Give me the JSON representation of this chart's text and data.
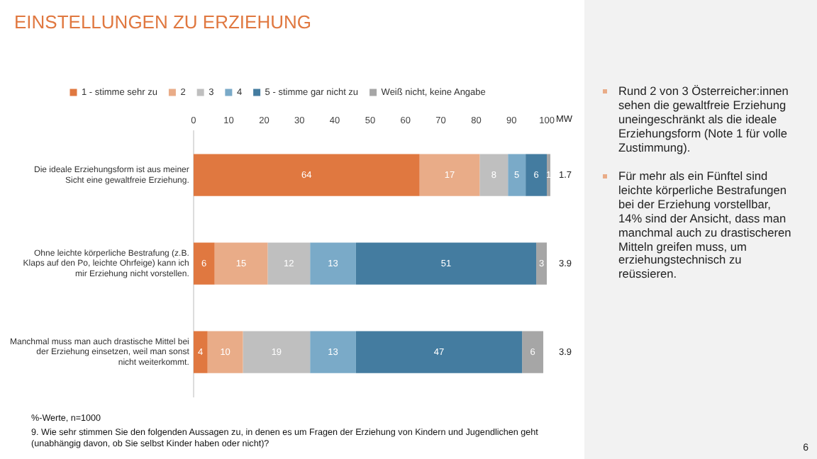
{
  "chart_data": {
    "type": "bar",
    "orientation": "horizontal",
    "stacked": true,
    "title": "EINSTELLUNGEN ZU ERZIEHUNG",
    "categories": [
      "Die ideale Erziehungsform ist aus meiner Sicht eine gewaltfreie Erziehung.",
      "Ohne leichte körperliche Bestrafung (z.B. Klaps auf den Po, leichte Ohrfeige) kann ich mir Erziehung nicht vorstellen.",
      "Manchmal muss man auch drastische Mittel bei der Erziehung einsetzen, weil man sonst nicht weiterkommt."
    ],
    "series": [
      {
        "name": "1 - stimme sehr zu",
        "color": "#e07840",
        "values": [
          64,
          6,
          4
        ]
      },
      {
        "name": "2",
        "color": "#e9ac88",
        "values": [
          17,
          15,
          10
        ]
      },
      {
        "name": "3",
        "color": "#bfbfbf",
        "values": [
          8,
          12,
          19
        ]
      },
      {
        "name": "4",
        "color": "#7aaac8",
        "values": [
          5,
          13,
          13
        ]
      },
      {
        "name": "5 - stimme gar nicht zu",
        "color": "#447ca0",
        "values": [
          6,
          51,
          47
        ]
      },
      {
        "name": "Weiß nicht, keine Angabe",
        "color": "#a6a6a6",
        "values": [
          1,
          3,
          6
        ]
      }
    ],
    "xlim": [
      0,
      101
    ],
    "xticks": [
      0,
      10,
      20,
      30,
      40,
      50,
      60,
      70,
      80,
      90,
      100
    ],
    "grid": false,
    "legend": "top",
    "data_labels": true,
    "annotations": [
      "1.7",
      "3.9",
      "3.9",
      "MW",
      "Rund 2 von 3 Österreicher:innen sehen die gewaltfreie Erziehung uneingeschränkt als die ideale Erziehungsform (Note 1 für volle Zustimmung).",
      "Für mehr als ein Fünftel sind leichte körperliche Bestrafungen bei der Erziehung vorstellbar, 14% sind der Ansicht, dass man manchmal auch zu drastischeren Mitteln greifen muss, um erziehungstechnisch zu reüssieren.",
      "%-Werte, n=1000",
      "9. Wie sehr stimmen Sie den folgenden Aussagen zu, in denen es um Fragen der Erziehung von Kindern und Jugendlichen geht (unabhängig davon, ob Sie selbst Kinder haben oder nicht)?",
      "6"
    ]
  }
}
